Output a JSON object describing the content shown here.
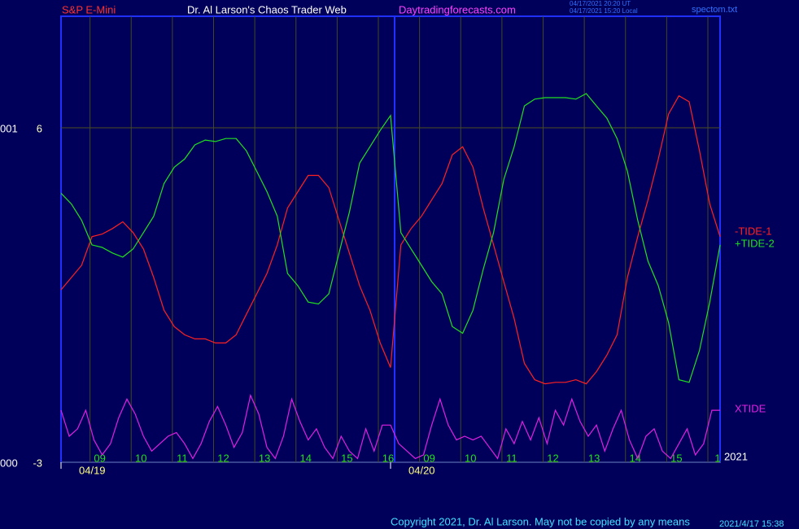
{
  "chart_data": {
    "type": "line",
    "title": "S&P E-Mini",
    "subtitle": "Dr. Al Larson's Chaos Trader Web",
    "site": "Daytradingforecasts.com",
    "timestamps": [
      "04/17/2021 20:20 UT",
      "04/17/2021 15:20 Local"
    ],
    "file": "spectom.txt",
    "copyright": "Copyright 2021, Dr. Al Larson. May not be copied by any means",
    "stamp": "2021/4/17 15:38",
    "year": "2021",
    "left_labels": [
      "000",
      "001"
    ],
    "ylim": [
      -3,
      9
    ],
    "yticks": [
      -3,
      6
    ],
    "xlim": [
      0,
      16
    ],
    "xticks": [
      {
        "value": 1,
        "label": "09"
      },
      {
        "value": 2,
        "label": "10"
      },
      {
        "value": 3,
        "label": "11"
      },
      {
        "value": 4,
        "label": "12"
      },
      {
        "value": 5,
        "label": "13"
      },
      {
        "value": 6,
        "label": "14"
      },
      {
        "value": 7,
        "label": "15"
      },
      {
        "value": 8,
        "label": "16"
      },
      {
        "value": 9,
        "label": "09"
      },
      {
        "value": 10,
        "label": "10"
      },
      {
        "value": 11,
        "label": "11"
      },
      {
        "value": 12,
        "label": "12"
      },
      {
        "value": 13,
        "label": "13"
      },
      {
        "value": 14,
        "label": "14"
      },
      {
        "value": 15,
        "label": "15"
      },
      {
        "value": 16,
        "label": "1"
      }
    ],
    "dates": [
      {
        "value": 0,
        "label": "04/19"
      },
      {
        "value": 8,
        "label": "04/20"
      }
    ],
    "grid": true,
    "x": [
      0,
      0.25,
      0.5,
      0.75,
      1,
      1.25,
      1.5,
      1.75,
      2,
      2.25,
      2.5,
      2.75,
      3,
      3.25,
      3.5,
      3.75,
      4,
      4.25,
      4.5,
      4.75,
      5,
      5.25,
      5.5,
      5.75,
      6,
      6.25,
      6.5,
      6.75,
      7,
      7.25,
      7.5,
      7.75,
      8,
      8.25,
      8.5,
      8.75,
      9,
      9.25,
      9.5,
      9.75,
      10,
      10.25,
      10.5,
      10.75,
      11,
      11.25,
      11.5,
      11.75,
      12,
      12.25,
      12.5,
      12.75,
      13,
      13.25,
      13.5,
      13.75,
      14,
      14.25,
      14.5,
      14.75,
      15,
      15.25,
      15.5,
      15.75,
      16
    ],
    "series": [
      {
        "name": "-TIDE-1",
        "color": "#ff2020",
        "values": [
          1.64,
          1.97,
          2.3,
          3.07,
          3.14,
          3.29,
          3.47,
          3.18,
          2.74,
          1.97,
          1.09,
          0.65,
          0.43,
          0.32,
          0.32,
          0.21,
          0.21,
          0.43,
          0.98,
          1.53,
          2.08,
          2.85,
          3.84,
          4.28,
          4.72,
          4.72,
          4.39,
          3.51,
          2.63,
          1.75,
          1.09,
          0.21,
          -0.45,
          2.85,
          3.29,
          3.62,
          4.06,
          4.5,
          5.27,
          5.49,
          4.94,
          3.84,
          2.85,
          1.86,
          0.87,
          -0.34,
          -0.78,
          -0.89,
          -0.85,
          -0.85,
          -0.78,
          -0.89,
          -0.56,
          -0.12,
          0.43,
          1.97,
          3.07,
          4.06,
          5.16,
          6.37,
          6.86,
          6.7,
          5.38,
          3.95,
          3.07
        ]
      },
      {
        "name": "+TIDE-2",
        "color": "#20e020",
        "values": [
          4.24,
          3.95,
          3.51,
          2.85,
          2.78,
          2.63,
          2.52,
          2.74,
          3.18,
          3.62,
          4.5,
          4.94,
          5.16,
          5.54,
          5.67,
          5.63,
          5.71,
          5.71,
          5.38,
          4.83,
          4.28,
          3.62,
          2.08,
          1.75,
          1.31,
          1.26,
          1.53,
          2.63,
          3.73,
          5.05,
          5.49,
          5.93,
          6.33,
          3.18,
          2.74,
          2.3,
          1.86,
          1.53,
          0.65,
          0.47,
          1.09,
          2.19,
          3.18,
          4.61,
          5.49,
          6.59,
          6.77,
          6.81,
          6.81,
          6.81,
          6.77,
          6.92,
          6.59,
          6.26,
          5.71,
          4.83,
          3.51,
          2.41,
          1.75,
          0.76,
          -0.78,
          -0.85,
          0.01,
          1.31,
          2.85
        ]
      },
      {
        "name": "XTIDE",
        "color": "#e020e0",
        "x": [
          0,
          0.2,
          0.4,
          0.6,
          0.8,
          1,
          1.2,
          1.4,
          1.6,
          1.8,
          2,
          2.2,
          2.4,
          2.6,
          2.8,
          3,
          3.2,
          3.4,
          3.6,
          3.8,
          4,
          4.2,
          4.4,
          4.6,
          4.8,
          5,
          5.2,
          5.4,
          5.6,
          5.8,
          6,
          6.2,
          6.4,
          6.6,
          6.8,
          7,
          7.2,
          7.4,
          7.6,
          7.8,
          8,
          8.2,
          8.4,
          8.6,
          8.8,
          9,
          9.2,
          9.4,
          9.6,
          9.8,
          10,
          10.2,
          10.4,
          10.6,
          10.8,
          11,
          11.2,
          11.4,
          11.6,
          11.8,
          12,
          12.2,
          12.4,
          12.6,
          12.8,
          13,
          13.2,
          13.4,
          13.6,
          13.8,
          14,
          14.2,
          14.4,
          14.6,
          14.8,
          15,
          15.2,
          15.4,
          15.6,
          15.8,
          16
        ],
        "values": [
          -1.6,
          -2.3,
          -2.1,
          -1.6,
          -2.4,
          -2.8,
          -2.5,
          -1.8,
          -1.3,
          -1.7,
          -2.3,
          -2.7,
          -2.5,
          -2.3,
          -2.2,
          -2.5,
          -2.9,
          -2.5,
          -1.9,
          -1.5,
          -2.0,
          -2.6,
          -2.2,
          -1.2,
          -1.7,
          -2.6,
          -2.9,
          -2.3,
          -1.3,
          -1.9,
          -2.4,
          -2.1,
          -2.6,
          -2.9,
          -2.3,
          -2.7,
          -2.9,
          -2.1,
          -2.7,
          -2.0,
          -2.0,
          -2.5,
          -2.7,
          -2.9,
          -2.8,
          -2.0,
          -1.3,
          -2.0,
          -2.4,
          -2.3,
          -2.4,
          -2.3,
          -2.6,
          -2.9,
          -2.1,
          -2.5,
          -1.9,
          -2.4,
          -1.8,
          -2.5,
          -1.6,
          -2.0,
          -1.3,
          -1.9,
          -2.3,
          -2.0,
          -2.7,
          -2.1,
          -1.6,
          -2.4,
          -2.9,
          -2.3,
          -2.1,
          -2.7,
          -2.9,
          -2.5,
          -2.1,
          -2.8,
          -2.5,
          -1.6,
          -1.6
        ]
      }
    ]
  }
}
